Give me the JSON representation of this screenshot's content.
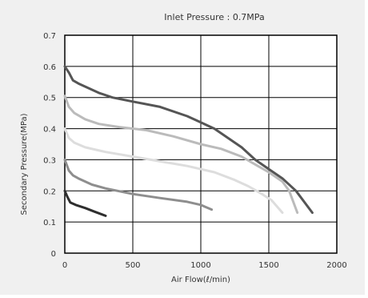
{
  "chart_data": {
    "type": "line",
    "title": "Inlet Pressure : 0.7MPa",
    "xlabel": "Air Flow(ℓ/min)",
    "ylabel": "Secondary Pressure(MPa)",
    "xlim": [
      0,
      2000
    ],
    "ylim": [
      0,
      0.7
    ],
    "xticks": [
      0,
      500,
      1000,
      1500,
      2000
    ],
    "yticks": [
      0,
      0.1,
      0.2,
      0.3,
      0.4,
      0.5,
      0.6,
      0.7
    ],
    "x_tick_labels": [
      "0",
      "500",
      "1000",
      "1500",
      "2000"
    ],
    "y_tick_labels": [
      "0",
      "0.1",
      "0.2",
      "0.3",
      "0.4",
      "0.5",
      "0.6",
      "0.7"
    ],
    "grid": true,
    "legend": "none",
    "series": [
      {
        "color": "#555555",
        "points": [
          [
            0,
            0.6
          ],
          [
            30,
            0.58
          ],
          [
            60,
            0.555
          ],
          [
            100,
            0.545
          ],
          [
            150,
            0.535
          ],
          [
            250,
            0.515
          ],
          [
            350,
            0.5
          ],
          [
            500,
            0.487
          ],
          [
            700,
            0.47
          ],
          [
            900,
            0.44
          ],
          [
            1000,
            0.42
          ],
          [
            1100,
            0.4
          ],
          [
            1200,
            0.37
          ],
          [
            1300,
            0.34
          ],
          [
            1400,
            0.3
          ],
          [
            1500,
            0.27
          ],
          [
            1600,
            0.24
          ],
          [
            1700,
            0.2
          ],
          [
            1820,
            0.13
          ]
        ]
      },
      {
        "color": "#bbbbbb",
        "points": [
          [
            0,
            0.505
          ],
          [
            30,
            0.47
          ],
          [
            70,
            0.45
          ],
          [
            150,
            0.43
          ],
          [
            250,
            0.415
          ],
          [
            400,
            0.405
          ],
          [
            600,
            0.395
          ],
          [
            800,
            0.375
          ],
          [
            1000,
            0.35
          ],
          [
            1150,
            0.335
          ],
          [
            1300,
            0.31
          ],
          [
            1400,
            0.285
          ],
          [
            1500,
            0.26
          ],
          [
            1600,
            0.23
          ],
          [
            1650,
            0.2
          ],
          [
            1710,
            0.13
          ]
        ]
      },
      {
        "color": "#dddddd",
        "points": [
          [
            0,
            0.4
          ],
          [
            30,
            0.37
          ],
          [
            70,
            0.355
          ],
          [
            150,
            0.34
          ],
          [
            300,
            0.325
          ],
          [
            500,
            0.31
          ],
          [
            700,
            0.295
          ],
          [
            900,
            0.28
          ],
          [
            1100,
            0.26
          ],
          [
            1250,
            0.235
          ],
          [
            1350,
            0.215
          ],
          [
            1450,
            0.19
          ],
          [
            1520,
            0.17
          ],
          [
            1600,
            0.13
          ]
        ]
      },
      {
        "color": "#8e8e8e",
        "points": [
          [
            0,
            0.3
          ],
          [
            30,
            0.265
          ],
          [
            60,
            0.25
          ],
          [
            100,
            0.24
          ],
          [
            200,
            0.22
          ],
          [
            300,
            0.208
          ],
          [
            500,
            0.19
          ],
          [
            700,
            0.177
          ],
          [
            900,
            0.165
          ],
          [
            1000,
            0.155
          ],
          [
            1080,
            0.14
          ]
        ]
      },
      {
        "color": "#2e2e2e",
        "points": [
          [
            0,
            0.2
          ],
          [
            20,
            0.18
          ],
          [
            40,
            0.163
          ],
          [
            80,
            0.155
          ],
          [
            150,
            0.145
          ],
          [
            220,
            0.133
          ],
          [
            300,
            0.12
          ]
        ]
      }
    ]
  }
}
